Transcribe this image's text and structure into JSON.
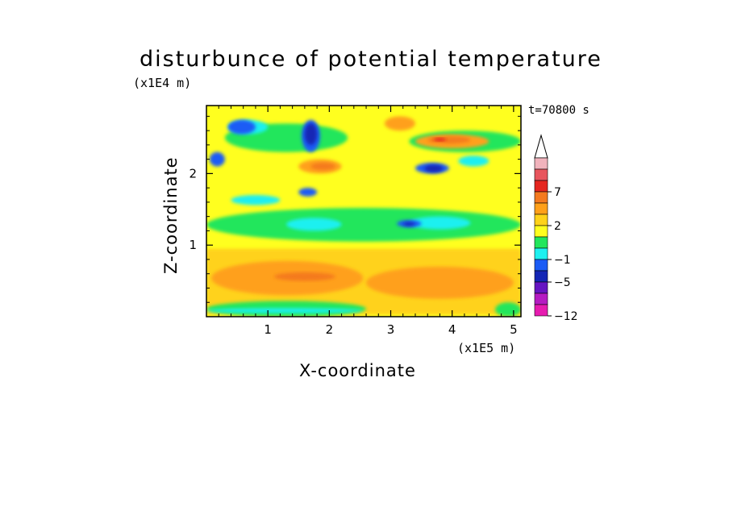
{
  "chart_data": {
    "type": "heatmap",
    "title": "disturbunce of potential temperature",
    "xlabel": "X-coordinate",
    "ylabel": "Z-coordinate",
    "x_unit": "(x1E5 m)",
    "y_unit": "(x1E4 m)",
    "time_label": "t=70800 s",
    "xlim": [
      0,
      5.12
    ],
    "ylim": [
      0,
      2.95
    ],
    "xticks": [
      "1",
      "2",
      "3",
      "4",
      "5"
    ],
    "yticks": [
      "1",
      "2"
    ],
    "colorbar": {
      "levels": [
        {
          "color": "#f1b3bc"
        },
        {
          "color": "#e8555d"
        },
        {
          "color": "#e5261f",
          "label": "7"
        },
        {
          "color": "#f47a1f"
        },
        {
          "color": "#ffa01a"
        },
        {
          "color": "#ffd21a",
          "label": "2"
        },
        {
          "color": "#ffff1f"
        },
        {
          "color": "#22e65c"
        },
        {
          "color": "#1ef0f0",
          "label": "-1"
        },
        {
          "color": "#1b5cf5"
        },
        {
          "color": "#1426b5",
          "label": "-5"
        },
        {
          "color": "#6615c2"
        },
        {
          "color": "#b51cc2"
        },
        {
          "color": "#e61cb0",
          "label": "-12"
        }
      ],
      "extend_max": true
    },
    "field_layers": [
      {
        "color": "#ffd21a",
        "shapes": [
          {
            "x": [
              0.0,
              5.12
            ],
            "z": [
              0.03,
              0.95
            ]
          }
        ]
      },
      {
        "color": "#ffa01a",
        "shapes": [
          {
            "x": [
              0.08,
              2.55
            ],
            "z": [
              0.3,
              0.78
            ]
          },
          {
            "x": [
              2.6,
              5.0
            ],
            "z": [
              0.25,
              0.7
            ]
          }
        ]
      },
      {
        "color": "#f47a1f",
        "shapes": [
          {
            "x": [
              1.1,
              2.1
            ],
            "z": [
              0.5,
              0.62
            ]
          }
        ]
      },
      {
        "color": "#22e65c",
        "shapes": [
          {
            "x": [
              0.0,
              5.12
            ],
            "z": [
              1.05,
              1.52
            ]
          },
          {
            "x": [
              0.0,
              2.6
            ],
            "z": [
              0.0,
              0.22
            ]
          },
          {
            "x": [
              0.3,
              2.3
            ],
            "z": [
              2.3,
              2.7
            ]
          },
          {
            "x": [
              3.3,
              5.12
            ],
            "z": [
              2.3,
              2.6
            ]
          },
          {
            "x": [
              4.7,
              5.12
            ],
            "z": [
              0.0,
              0.2
            ]
          }
        ]
      },
      {
        "color": "#1ef0f0",
        "shapes": [
          {
            "x": [
              1.3,
              2.2
            ],
            "z": [
              1.2,
              1.38
            ]
          },
          {
            "x": [
              3.3,
              4.3
            ],
            "z": [
              1.22,
              1.4
            ]
          },
          {
            "x": [
              0.0,
              2.55
            ],
            "z": [
              0.05,
              0.12
            ]
          },
          {
            "x": [
              0.35,
              1.0
            ],
            "z": [
              2.55,
              2.75
            ]
          },
          {
            "x": [
              4.1,
              4.6
            ],
            "z": [
              2.1,
              2.25
            ]
          },
          {
            "x": [
              0.4,
              1.2
            ],
            "z": [
              1.56,
              1.7
            ]
          }
        ]
      },
      {
        "color": "#1b5cf5",
        "shapes": [
          {
            "x": [
              1.55,
              1.85
            ],
            "z": [
              2.3,
              2.75
            ]
          },
          {
            "x": [
              3.4,
              3.95
            ],
            "z": [
              2.0,
              2.15
            ]
          },
          {
            "x": [
              3.1,
              3.5
            ],
            "z": [
              1.25,
              1.35
            ]
          },
          {
            "x": [
              0.05,
              0.3
            ],
            "z": [
              2.1,
              2.3
            ]
          },
          {
            "x": [
              0.35,
              0.8
            ],
            "z": [
              2.55,
              2.75
            ]
          },
          {
            "x": [
              1.5,
              1.8
            ],
            "z": [
              1.68,
              1.8
            ]
          }
        ]
      },
      {
        "color": "#1426b5",
        "shapes": [
          {
            "x": [
              1.6,
              1.8
            ],
            "z": [
              2.4,
              2.7
            ]
          },
          {
            "x": [
              3.55,
              3.85
            ],
            "z": [
              2.02,
              2.12
            ]
          },
          {
            "x": [
              3.2,
              3.4
            ],
            "z": [
              1.27,
              1.32
            ]
          }
        ]
      },
      {
        "color": "#ffa01a",
        "shapes": [
          {
            "x": [
              2.9,
              3.4
            ],
            "z": [
              2.6,
              2.8
            ]
          },
          {
            "x": [
              3.4,
              4.6
            ],
            "z": [
              2.35,
              2.55
            ]
          },
          {
            "x": [
              1.5,
              2.2
            ],
            "z": [
              2.0,
              2.2
            ]
          }
        ]
      },
      {
        "color": "#f47a1f",
        "shapes": [
          {
            "x": [
              3.6,
              4.3
            ],
            "z": [
              2.42,
              2.52
            ]
          },
          {
            "x": [
              1.7,
              2.1
            ],
            "z": [
              2.05,
              2.15
            ]
          }
        ]
      },
      {
        "color": "#e5261f",
        "shapes": [
          {
            "x": [
              3.7,
              3.9
            ],
            "z": [
              2.45,
              2.5
            ]
          }
        ]
      }
    ]
  }
}
